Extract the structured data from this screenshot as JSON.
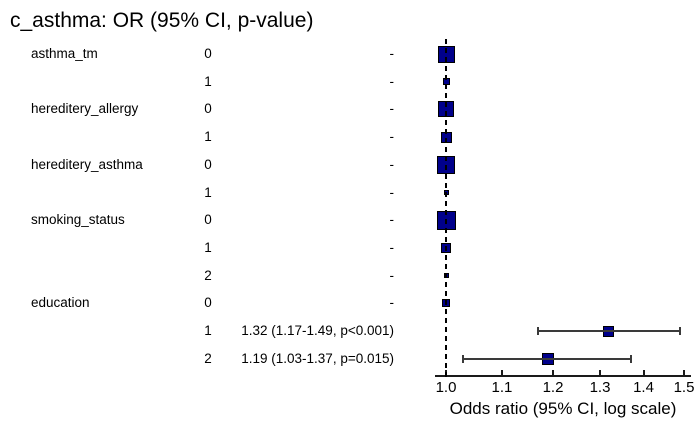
{
  "chart_data": {
    "type": "forest",
    "title": "c_asthma: OR (95% CI, p-value)",
    "xlabel": "Odds ratio (95% CI, log scale)",
    "x_scale": "log",
    "x_range": [
      0.98,
      1.52
    ],
    "reference_line": 1.0,
    "grid": false,
    "x_ticks": [
      {
        "value": 1.0,
        "label": "1.0"
      },
      {
        "value": 1.1,
        "label": "1.1"
      },
      {
        "value": 1.2,
        "label": "1.2"
      },
      {
        "value": 1.3,
        "label": "1.3"
      },
      {
        "value": 1.4,
        "label": "1.4"
      },
      {
        "value": 1.5,
        "label": "1.5"
      }
    ],
    "rows": [
      {
        "variable": "asthma_tm",
        "level": "0",
        "value_label": "-",
        "or": 1.0,
        "ci_low": null,
        "ci_high": null,
        "marker_size": 17
      },
      {
        "variable": "",
        "level": "1",
        "value_label": "-",
        "or": 1.0,
        "ci_low": null,
        "ci_high": null,
        "marker_size": 7
      },
      {
        "variable": "hereditery_allergy",
        "level": "0",
        "value_label": "-",
        "or": 1.0,
        "ci_low": null,
        "ci_high": null,
        "marker_size": 16
      },
      {
        "variable": "",
        "level": "1",
        "value_label": "-",
        "or": 1.0,
        "ci_low": null,
        "ci_high": null,
        "marker_size": 11
      },
      {
        "variable": "hereditery_asthma",
        "level": "0",
        "value_label": "-",
        "or": 1.0,
        "ci_low": null,
        "ci_high": null,
        "marker_size": 18
      },
      {
        "variable": "",
        "level": "1",
        "value_label": "-",
        "or": 1.0,
        "ci_low": null,
        "ci_high": null,
        "marker_size": 5
      },
      {
        "variable": "smoking_status",
        "level": "0",
        "value_label": "-",
        "or": 1.0,
        "ci_low": null,
        "ci_high": null,
        "marker_size": 19
      },
      {
        "variable": "",
        "level": "1",
        "value_label": "-",
        "or": 1.0,
        "ci_low": null,
        "ci_high": null,
        "marker_size": 10
      },
      {
        "variable": "",
        "level": "2",
        "value_label": "-",
        "or": 1.0,
        "ci_low": null,
        "ci_high": null,
        "marker_size": 5
      },
      {
        "variable": "education",
        "level": "0",
        "value_label": "-",
        "or": 1.0,
        "ci_low": null,
        "ci_high": null,
        "marker_size": 8
      },
      {
        "variable": "",
        "level": "1",
        "value_label": "1.32 (1.17-1.49, p<0.001)",
        "or": 1.32,
        "ci_low": 1.17,
        "ci_high": 1.49,
        "marker_size": 11
      },
      {
        "variable": "",
        "level": "2",
        "value_label": "1.19 (1.03-1.37, p=0.015)",
        "or": 1.19,
        "ci_low": 1.03,
        "ci_high": 1.37,
        "marker_size": 12
      }
    ],
    "colors": {
      "marker_fill": "#00008B",
      "marker_border": "#000000",
      "ci_line": "#3a3a3a",
      "reference_line": "#000000",
      "axis": "#1a1a1a",
      "text": "#000000",
      "background": "#ffffff"
    }
  }
}
